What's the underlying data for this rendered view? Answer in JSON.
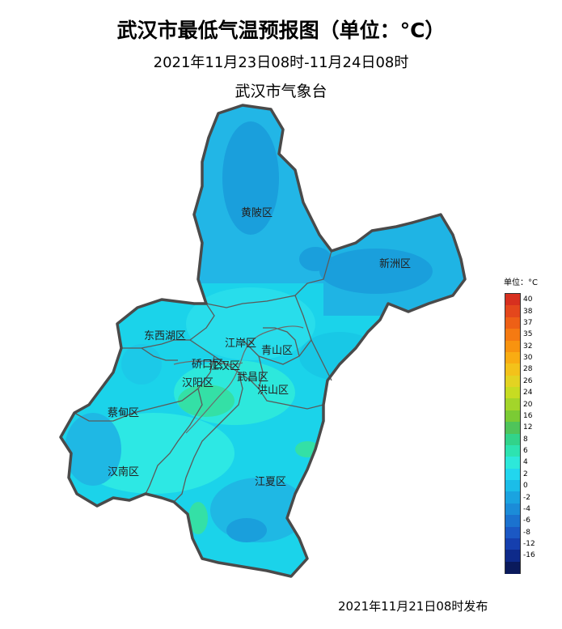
{
  "header": {
    "title": "武汉市最低气温预报图（单位：°C）",
    "period": "2021年11月23日08时-11月24日08时",
    "issuer": "武汉市气象台"
  },
  "footer": {
    "published": "2021年11月21日08时发布"
  },
  "legend": {
    "title": "单位：°C",
    "entries": [
      {
        "label": "40",
        "color": "#d7301f"
      },
      {
        "label": "38",
        "color": "#e4471c"
      },
      {
        "label": "37",
        "color": "#ee6016"
      },
      {
        "label": "35",
        "color": "#f57a12"
      },
      {
        "label": "32",
        "color": "#f8930f"
      },
      {
        "label": "30",
        "color": "#f9ac12"
      },
      {
        "label": "28",
        "color": "#f3c21a"
      },
      {
        "label": "26",
        "color": "#e3d322"
      },
      {
        "label": "24",
        "color": "#c7dc22"
      },
      {
        "label": "20",
        "color": "#a3d52a"
      },
      {
        "label": "16",
        "color": "#7bcb34"
      },
      {
        "label": "12",
        "color": "#4fc45a"
      },
      {
        "label": "8",
        "color": "#32d38a"
      },
      {
        "label": "6",
        "color": "#2de3b0"
      },
      {
        "label": "4",
        "color": "#2de8da"
      },
      {
        "label": "2",
        "color": "#22d6ee"
      },
      {
        "label": "0",
        "color": "#1bbde8"
      },
      {
        "label": "-2",
        "color": "#1aa3e0"
      },
      {
        "label": "-4",
        "color": "#1b8cd8"
      },
      {
        "label": "-6",
        "color": "#1b72cf"
      },
      {
        "label": "-8",
        "color": "#1b58c4"
      },
      {
        "label": "-12",
        "color": "#153fae"
      },
      {
        "label": "-16",
        "color": "#0e2a8a"
      },
      {
        "label": "",
        "color": "#0a1a5c"
      }
    ]
  },
  "districts": {
    "huangpi": "黄陂区",
    "xinzhou": "新洲区",
    "dongxihu": "东西湖区",
    "jiangan": "江岸区",
    "qingshan": "青山区",
    "qiaokou": "硚口区",
    "jianghan": "江汉区",
    "hanyang": "汉阳区",
    "wuchang": "武昌区",
    "hongshan": "洪山区",
    "caidian": "蔡甸区",
    "hannan": "汉南区",
    "jiangxia": "江夏区"
  },
  "colors": {
    "border": "#4a4a4a",
    "base": "#1bd3ea",
    "north": "#22b6e6",
    "cold": "#1a9fdc",
    "warm": "#2de8dc",
    "warmest": "#34e0a6"
  }
}
